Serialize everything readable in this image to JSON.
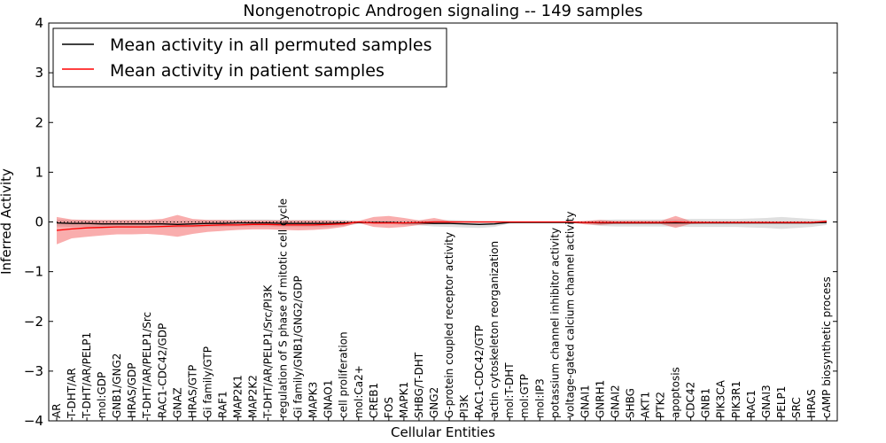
{
  "chart_data": {
    "type": "line",
    "title": "Nongenotropic Androgen signaling -- 149 samples",
    "xlabel": "Cellular Entities",
    "ylabel": "Inferred Activity",
    "ylim": [
      -4,
      4
    ],
    "yticks": [
      "4",
      "3",
      "2",
      "1",
      "0",
      "−1",
      "−2",
      "−3",
      "−4"
    ],
    "legend_position": "top-left",
    "categories": [
      "AR",
      "T-DHT/AR",
      "T-DHT/AR/PELP1",
      "mol:GDP",
      "GNB1/GNG2",
      "HRAS/GDP",
      "T-DHT/AR/PELP1/Src",
      "RAC1-CDC42/GDP",
      "GNAZ",
      "HRAS/GTP",
      "Gi family/GTP",
      "RAF1",
      "MAP2K1",
      "MAP2K2",
      "T-DHT/AR/PELP1/Src/PI3K",
      "regulation of S phase of mitotic cell cycle",
      "Gi family/GNB1/GNG2/GDP",
      "MAPK3",
      "GNAO1",
      "cell proliferation",
      "mol:Ca2+",
      "CREB1",
      "FOS",
      "MAPK1",
      "SHBG/T-DHT",
      "GNG2",
      "G-protein coupled receptor activity",
      "PI3K",
      "RAC1-CDC42/GTP",
      "actin cytoskeleton reorganization",
      "mol:T-DHT",
      "mol:GTP",
      "mol:IP3",
      "potassium channel inhibitor activity",
      "voltage-gated calcium channel activity",
      "GNAI1",
      "GNRH1",
      "GNAI2",
      "SHBG",
      "AKT1",
      "PTK2",
      "apoptosis",
      "CDC42",
      "GNB1",
      "PIK3CA",
      "PIK3R1",
      "RAC1",
      "GNAI3",
      "PELP1",
      "SRC",
      "HRAS",
      "cAMP biosynthetic process"
    ],
    "series": [
      {
        "name": "Mean activity in all permuted samples",
        "color": "#000000",
        "values": [
          -0.02,
          -0.03,
          -0.03,
          -0.04,
          -0.04,
          -0.04,
          -0.04,
          -0.04,
          -0.05,
          -0.04,
          -0.03,
          -0.03,
          -0.02,
          -0.02,
          -0.02,
          -0.03,
          -0.03,
          -0.03,
          -0.03,
          -0.02,
          -0.01,
          -0.01,
          -0.01,
          -0.02,
          -0.02,
          -0.03,
          -0.03,
          -0.04,
          -0.05,
          -0.04,
          -0.01,
          -0.01,
          -0.01,
          -0.01,
          -0.01,
          -0.01,
          -0.02,
          -0.02,
          -0.02,
          -0.02,
          -0.02,
          -0.02,
          -0.02,
          -0.02,
          -0.02,
          -0.02,
          -0.02,
          -0.02,
          -0.02,
          -0.02,
          -0.02,
          -0.01
        ],
        "band_low": [
          -0.09,
          -0.1,
          -0.1,
          -0.11,
          -0.11,
          -0.11,
          -0.11,
          -0.11,
          -0.12,
          -0.11,
          -0.1,
          -0.1,
          -0.09,
          -0.09,
          -0.09,
          -0.1,
          -0.1,
          -0.1,
          -0.1,
          -0.08,
          -0.04,
          -0.04,
          -0.04,
          -0.06,
          -0.07,
          -0.09,
          -0.1,
          -0.11,
          -0.12,
          -0.1,
          -0.03,
          -0.02,
          -0.02,
          -0.02,
          -0.02,
          -0.04,
          -0.08,
          -0.09,
          -0.09,
          -0.09,
          -0.09,
          -0.09,
          -0.1,
          -0.1,
          -0.1,
          -0.1,
          -0.11,
          -0.12,
          -0.14,
          -0.12,
          -0.1,
          -0.06
        ],
        "band_high": [
          0.05,
          0.04,
          0.04,
          0.03,
          0.03,
          0.03,
          0.03,
          0.03,
          0.02,
          0.03,
          0.04,
          0.04,
          0.05,
          0.05,
          0.05,
          0.04,
          0.04,
          0.04,
          0.04,
          0.04,
          0.02,
          0.02,
          0.02,
          0.02,
          0.03,
          0.03,
          0.04,
          0.03,
          0.02,
          0.02,
          0.01,
          0.0,
          0.0,
          0.0,
          0.0,
          0.02,
          0.04,
          0.05,
          0.05,
          0.05,
          0.05,
          0.05,
          0.06,
          0.06,
          0.06,
          0.06,
          0.07,
          0.08,
          0.1,
          0.08,
          0.06,
          0.04
        ]
      },
      {
        "name": "Mean activity in patient samples",
        "color": "#ff0000",
        "values": [
          -0.17,
          -0.14,
          -0.12,
          -0.11,
          -0.1,
          -0.1,
          -0.1,
          -0.09,
          -0.08,
          -0.08,
          -0.07,
          -0.06,
          -0.06,
          -0.05,
          -0.05,
          -0.06,
          -0.06,
          -0.06,
          -0.05,
          -0.04,
          0.0,
          -0.02,
          -0.02,
          -0.02,
          -0.01,
          0.0,
          0.0,
          0.0,
          0.0,
          0.0,
          0.0,
          0.0,
          0.0,
          0.0,
          0.0,
          -0.01,
          -0.01,
          -0.01,
          -0.01,
          -0.01,
          -0.01,
          0.0,
          -0.01,
          -0.01,
          -0.01,
          -0.01,
          -0.01,
          -0.01,
          -0.01,
          -0.01,
          -0.01,
          0.01
        ],
        "band_low": [
          -0.45,
          -0.33,
          -0.3,
          -0.27,
          -0.25,
          -0.25,
          -0.24,
          -0.26,
          -0.3,
          -0.24,
          -0.2,
          -0.18,
          -0.16,
          -0.15,
          -0.15,
          -0.16,
          -0.17,
          -0.16,
          -0.14,
          -0.1,
          -0.02,
          -0.1,
          -0.12,
          -0.1,
          -0.06,
          -0.04,
          -0.02,
          -0.01,
          -0.01,
          -0.01,
          -0.01,
          -0.01,
          -0.01,
          -0.01,
          -0.01,
          -0.05,
          -0.06,
          -0.04,
          -0.04,
          -0.04,
          -0.04,
          -0.12,
          -0.04,
          -0.03,
          -0.03,
          -0.03,
          -0.03,
          -0.03,
          -0.03,
          -0.03,
          -0.03,
          -0.01
        ],
        "band_high": [
          0.1,
          0.05,
          0.04,
          0.04,
          0.04,
          0.04,
          0.04,
          0.06,
          0.14,
          0.06,
          0.04,
          0.04,
          0.03,
          0.03,
          0.03,
          0.03,
          0.03,
          0.03,
          0.03,
          0.02,
          0.02,
          0.1,
          0.12,
          0.08,
          0.03,
          0.08,
          0.02,
          0.01,
          0.01,
          0.01,
          0.01,
          0.01,
          0.01,
          0.01,
          0.01,
          0.02,
          0.04,
          0.02,
          0.02,
          0.02,
          0.02,
          0.12,
          0.02,
          0.01,
          0.01,
          0.01,
          0.01,
          0.01,
          0.01,
          0.01,
          0.01,
          0.03
        ]
      }
    ]
  }
}
